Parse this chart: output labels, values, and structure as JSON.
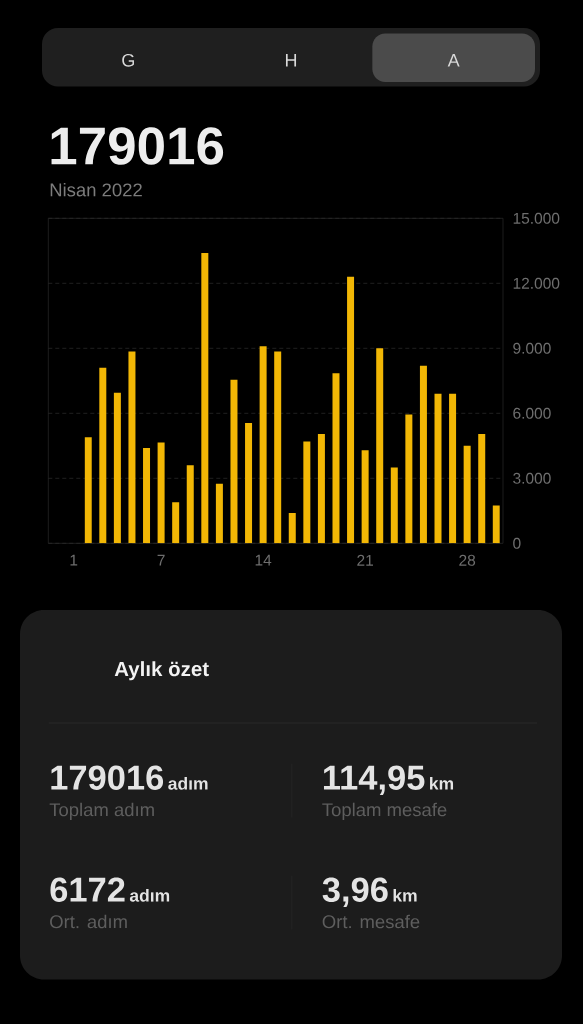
{
  "chart_data": [
    {
      "type": "bar",
      "title": "179016",
      "subtitle": "Nisan 2022",
      "annotations": [
        "G",
        "H",
        "A"
      ],
      "categories": [
        "1",
        null,
        null,
        null,
        null,
        null,
        "7",
        null,
        null,
        null,
        null,
        null,
        null,
        "14",
        null,
        null,
        null,
        null,
        null,
        null,
        "21",
        null,
        null,
        null,
        null,
        null,
        null,
        "28",
        null,
        null
      ],
      "values": [
        null,
        4900,
        8100,
        6950,
        8850,
        4400,
        4650,
        1900,
        3600,
        13400,
        2750,
        7550,
        5550,
        9100,
        8850,
        1400,
        4700,
        5050,
        7850,
        12300,
        4300,
        9000,
        3500,
        5950,
        8200,
        6900,
        6900,
        4500,
        5050,
        1750
      ],
      "color": "#f2b705",
      "ylim": [
        0,
        15000
      ],
      "yticks": [
        0,
        {
          "value": 3000,
          "label": "3.000"
        },
        {
          "value": 6000,
          "label": "6.000"
        },
        {
          "value": 9000,
          "label": "9.000"
        },
        {
          "value": 12000,
          "label": "12.000"
        },
        {
          "value": 15000,
          "label": "15.000"
        }
      ],
      "grid": "y"
    },
    {
      "type": "other",
      "title": "Aylık özet",
      "annotations": [
        "179016",
        "adım",
        "Toplam adım",
        "114,95",
        "km",
        "Toplam mesafe",
        "6172",
        "adım",
        "Ort. adım",
        "3,96",
        "km",
        "Ort. mesafe"
      ]
    }
  ]
}
